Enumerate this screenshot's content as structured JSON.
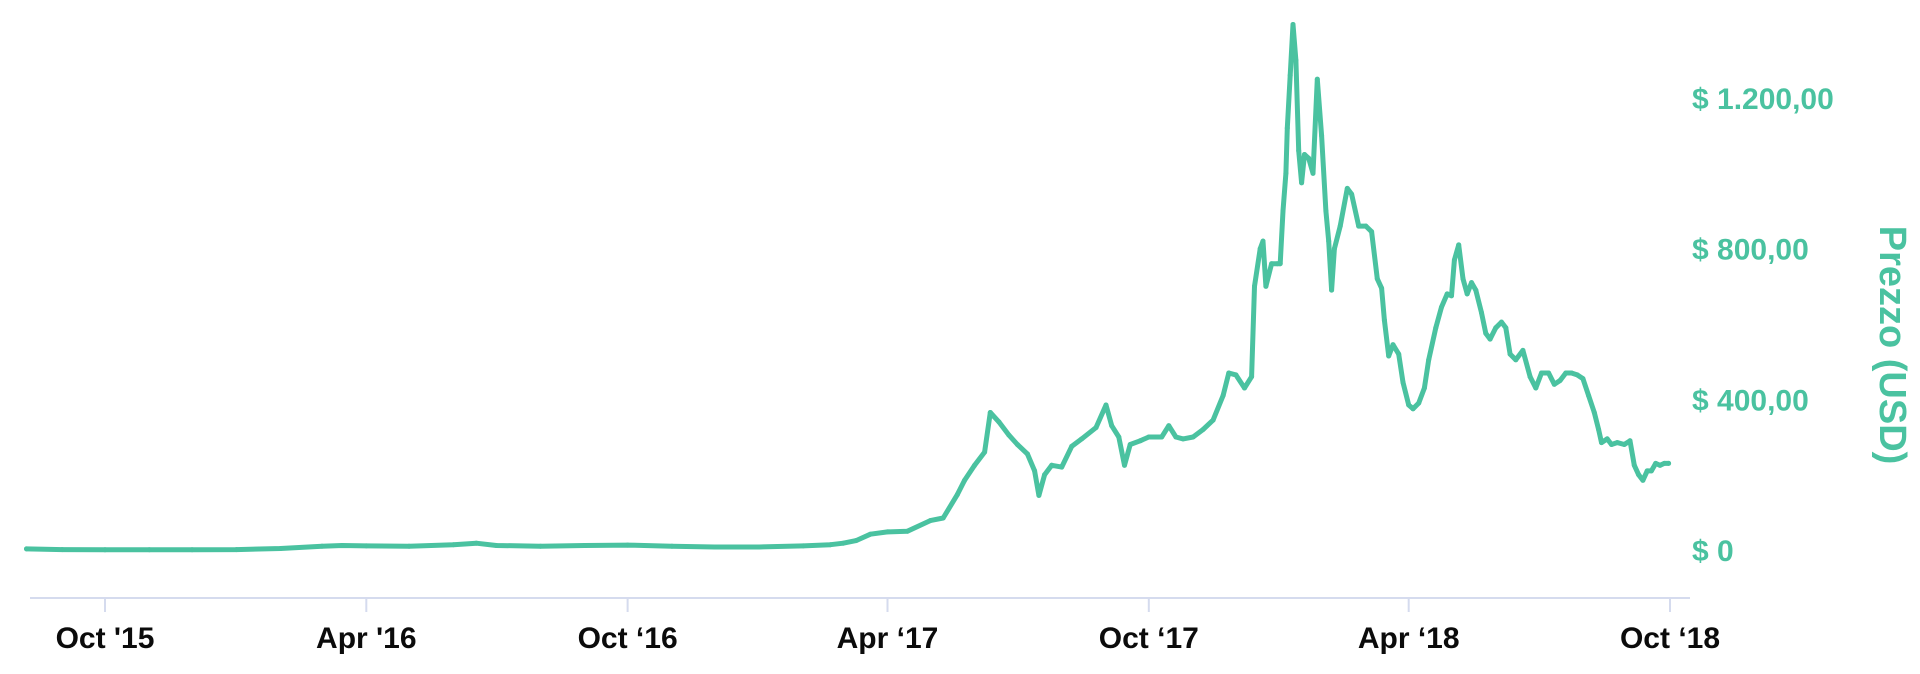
{
  "chart_data": {
    "type": "line",
    "title": "",
    "xlabel": "",
    "ylabel": "Prezzo (USD)",
    "ylim": [
      -25,
      1400
    ],
    "grid": false,
    "legend": "none",
    "y_axis_side": "right",
    "colors": {
      "series": "#4ac2a0",
      "axis": "#d5dbee",
      "x_tick_text": "#0b0b0b",
      "y_tick_text": "#4ac2a0"
    },
    "x_ticks": [
      {
        "date": "2015-10-01",
        "label": "Oct  '15"
      },
      {
        "date": "2016-04-01",
        "label": "Apr '16"
      },
      {
        "date": "2016-10-01",
        "label": "Oct ‘16"
      },
      {
        "date": "2017-04-01",
        "label": "Apr ‘17"
      },
      {
        "date": "2017-10-01",
        "label": "Oct ‘17"
      },
      {
        "date": "2018-04-01",
        "label": "Apr ‘18"
      },
      {
        "date": "2018-10-01",
        "label": "Oct ‘18"
      }
    ],
    "y_ticks": [
      {
        "value": 0,
        "label": "$ 0"
      },
      {
        "value": 400,
        "label": "$ 400,00"
      },
      {
        "value": 800,
        "label": "$ 800,00"
      },
      {
        "value": 1200,
        "label": "$ 1.200,00"
      }
    ],
    "series": [
      {
        "points": [
          [
            "2015-08-07",
            3
          ],
          [
            "2015-09-01",
            1
          ],
          [
            "2015-10-01",
            0.6
          ],
          [
            "2015-11-01",
            0.9
          ],
          [
            "2015-12-01",
            0.9
          ],
          [
            "2016-01-01",
            1
          ],
          [
            "2016-02-01",
            4
          ],
          [
            "2016-03-01",
            10
          ],
          [
            "2016-03-15",
            12
          ],
          [
            "2016-04-01",
            11
          ],
          [
            "2016-05-01",
            10
          ],
          [
            "2016-06-01",
            14
          ],
          [
            "2016-06-17",
            18
          ],
          [
            "2016-07-01",
            12
          ],
          [
            "2016-08-01",
            10
          ],
          [
            "2016-09-01",
            12
          ],
          [
            "2016-10-01",
            13
          ],
          [
            "2016-11-01",
            10
          ],
          [
            "2016-12-01",
            8
          ],
          [
            "2017-01-01",
            8
          ],
          [
            "2017-02-01",
            11
          ],
          [
            "2017-02-20",
            14
          ],
          [
            "2017-03-01",
            18
          ],
          [
            "2017-03-10",
            25
          ],
          [
            "2017-03-20",
            42
          ],
          [
            "2017-04-01",
            48
          ],
          [
            "2017-04-15",
            50
          ],
          [
            "2017-05-01",
            78
          ],
          [
            "2017-05-10",
            85
          ],
          [
            "2017-05-20",
            148
          ],
          [
            "2017-05-25",
            185
          ],
          [
            "2017-06-01",
            225
          ],
          [
            "2017-06-08",
            260
          ],
          [
            "2017-06-12",
            365
          ],
          [
            "2017-06-18",
            340
          ],
          [
            "2017-06-25",
            305
          ],
          [
            "2017-07-01",
            280
          ],
          [
            "2017-07-08",
            255
          ],
          [
            "2017-07-13",
            210
          ],
          [
            "2017-07-16",
            145
          ],
          [
            "2017-07-20",
            200
          ],
          [
            "2017-07-25",
            225
          ],
          [
            "2017-08-01",
            220
          ],
          [
            "2017-08-08",
            275
          ],
          [
            "2017-08-15",
            295
          ],
          [
            "2017-08-25",
            325
          ],
          [
            "2017-09-01",
            385
          ],
          [
            "2017-09-05",
            330
          ],
          [
            "2017-09-10",
            300
          ],
          [
            "2017-09-14",
            225
          ],
          [
            "2017-09-18",
            280
          ],
          [
            "2017-09-25",
            290
          ],
          [
            "2017-10-01",
            300
          ],
          [
            "2017-10-10",
            300
          ],
          [
            "2017-10-15",
            330
          ],
          [
            "2017-10-20",
            300
          ],
          [
            "2017-10-25",
            295
          ],
          [
            "2017-11-01",
            300
          ],
          [
            "2017-11-08",
            320
          ],
          [
            "2017-11-15",
            345
          ],
          [
            "2017-11-22",
            410
          ],
          [
            "2017-11-26",
            470
          ],
          [
            "2017-12-01",
            465
          ],
          [
            "2017-12-07",
            430
          ],
          [
            "2017-12-12",
            460
          ],
          [
            "2017-12-14",
            700
          ],
          [
            "2017-12-18",
            800
          ],
          [
            "2017-12-20",
            820
          ],
          [
            "2017-12-22",
            700
          ],
          [
            "2017-12-26",
            760
          ],
          [
            "2017-12-30",
            760
          ],
          [
            "2018-01-01",
            760
          ],
          [
            "2018-01-03",
            900
          ],
          [
            "2018-01-05",
            1000
          ],
          [
            "2018-01-06",
            1120
          ],
          [
            "2018-01-08",
            1260
          ],
          [
            "2018-01-10",
            1395
          ],
          [
            "2018-01-12",
            1300
          ],
          [
            "2018-01-14",
            1060
          ],
          [
            "2018-01-16",
            975
          ],
          [
            "2018-01-18",
            1050
          ],
          [
            "2018-01-21",
            1040
          ],
          [
            "2018-01-24",
            1000
          ],
          [
            "2018-01-27",
            1250
          ],
          [
            "2018-01-30",
            1100
          ],
          [
            "2018-02-02",
            900
          ],
          [
            "2018-02-04",
            820
          ],
          [
            "2018-02-06",
            690
          ],
          [
            "2018-02-08",
            800
          ],
          [
            "2018-02-12",
            860
          ],
          [
            "2018-02-17",
            960
          ],
          [
            "2018-02-20",
            945
          ],
          [
            "2018-02-25",
            860
          ],
          [
            "2018-03-02",
            860
          ],
          [
            "2018-03-06",
            845
          ],
          [
            "2018-03-10",
            720
          ],
          [
            "2018-03-13",
            695
          ],
          [
            "2018-03-15",
            610
          ],
          [
            "2018-03-18",
            515
          ],
          [
            "2018-03-21",
            545
          ],
          [
            "2018-03-25",
            520
          ],
          [
            "2018-03-28",
            445
          ],
          [
            "2018-04-01",
            385
          ],
          [
            "2018-04-04",
            375
          ],
          [
            "2018-04-08",
            390
          ],
          [
            "2018-04-12",
            430
          ],
          [
            "2018-04-15",
            505
          ],
          [
            "2018-04-20",
            590
          ],
          [
            "2018-04-24",
            645
          ],
          [
            "2018-04-28",
            680
          ],
          [
            "2018-05-01",
            675
          ],
          [
            "2018-05-03",
            770
          ],
          [
            "2018-05-06",
            810
          ],
          [
            "2018-05-09",
            720
          ],
          [
            "2018-05-12",
            680
          ],
          [
            "2018-05-15",
            710
          ],
          [
            "2018-05-18",
            690
          ],
          [
            "2018-05-22",
            630
          ],
          [
            "2018-05-25",
            575
          ],
          [
            "2018-05-28",
            560
          ],
          [
            "2018-06-01",
            590
          ],
          [
            "2018-06-05",
            605
          ],
          [
            "2018-06-08",
            590
          ],
          [
            "2018-06-11",
            520
          ],
          [
            "2018-06-15",
            505
          ],
          [
            "2018-06-20",
            530
          ],
          [
            "2018-06-25",
            460
          ],
          [
            "2018-06-29",
            430
          ],
          [
            "2018-07-03",
            470
          ],
          [
            "2018-07-08",
            470
          ],
          [
            "2018-07-12",
            440
          ],
          [
            "2018-07-16",
            450
          ],
          [
            "2018-07-20",
            470
          ],
          [
            "2018-07-24",
            470
          ],
          [
            "2018-07-28",
            465
          ],
          [
            "2018-08-01",
            455
          ],
          [
            "2018-08-05",
            410
          ],
          [
            "2018-08-09",
            365
          ],
          [
            "2018-08-12",
            320
          ],
          [
            "2018-08-14",
            285
          ],
          [
            "2018-08-18",
            295
          ],
          [
            "2018-08-21",
            280
          ],
          [
            "2018-08-25",
            285
          ],
          [
            "2018-08-30",
            280
          ],
          [
            "2018-09-03",
            290
          ],
          [
            "2018-09-06",
            225
          ],
          [
            "2018-09-09",
            200
          ],
          [
            "2018-09-12",
            185
          ],
          [
            "2018-09-15",
            210
          ],
          [
            "2018-09-18",
            210
          ],
          [
            "2018-09-21",
            230
          ],
          [
            "2018-09-24",
            225
          ],
          [
            "2018-09-27",
            230
          ],
          [
            "2018-09-30",
            230
          ]
        ]
      }
    ]
  }
}
